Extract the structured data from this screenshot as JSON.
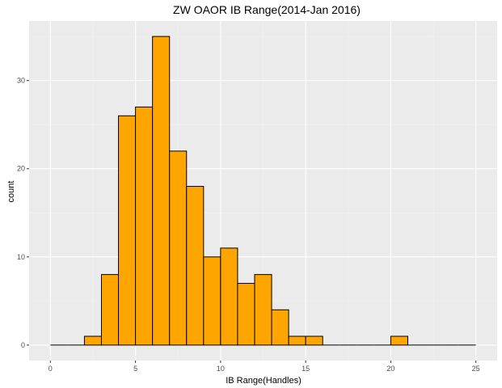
{
  "chart_data": {
    "type": "bar",
    "subtype": "histogram",
    "title": "ZW OAOR IB Range(2014-Jan 2016)",
    "xlabel": "IB Range(Handles)",
    "ylabel": "count",
    "bin_width": 1,
    "bins": [
      {
        "x0": 0,
        "x1": 1,
        "count": 0
      },
      {
        "x0": 1,
        "x1": 2,
        "count": 0
      },
      {
        "x0": 2,
        "x1": 3,
        "count": 1
      },
      {
        "x0": 3,
        "x1": 4,
        "count": 8
      },
      {
        "x0": 4,
        "x1": 5,
        "count": 26
      },
      {
        "x0": 5,
        "x1": 6,
        "count": 27
      },
      {
        "x0": 6,
        "x1": 7,
        "count": 35
      },
      {
        "x0": 7,
        "x1": 8,
        "count": 22
      },
      {
        "x0": 8,
        "x1": 9,
        "count": 18
      },
      {
        "x0": 9,
        "x1": 10,
        "count": 10
      },
      {
        "x0": 10,
        "x1": 11,
        "count": 11
      },
      {
        "x0": 11,
        "x1": 12,
        "count": 7
      },
      {
        "x0": 12,
        "x1": 13,
        "count": 8
      },
      {
        "x0": 13,
        "x1": 14,
        "count": 4
      },
      {
        "x0": 14,
        "x1": 15,
        "count": 1
      },
      {
        "x0": 15,
        "x1": 16,
        "count": 1
      },
      {
        "x0": 16,
        "x1": 17,
        "count": 0
      },
      {
        "x0": 17,
        "x1": 18,
        "count": 0
      },
      {
        "x0": 18,
        "x1": 19,
        "count": 0
      },
      {
        "x0": 19,
        "x1": 20,
        "count": 0
      },
      {
        "x0": 20,
        "x1": 21,
        "count": 1
      },
      {
        "x0": 21,
        "x1": 22,
        "count": 0
      },
      {
        "x0": 22,
        "x1": 23,
        "count": 0
      },
      {
        "x0": 23,
        "x1": 24,
        "count": 0
      },
      {
        "x0": 24,
        "x1": 25,
        "count": 0
      }
    ],
    "x_ticks": [
      0,
      5,
      10,
      15,
      20,
      25
    ],
    "y_ticks": [
      0,
      10,
      20,
      30
    ],
    "xlim": [
      -1.25,
      26.25
    ],
    "ylim": [
      -1.75,
      36.75
    ],
    "grid": true,
    "colors": {
      "bar_fill": "#FFA500",
      "bar_stroke": "#000000",
      "panel_bg": "#EBEBEB",
      "grid_major": "#FFFFFF",
      "grid_minor": "#F2F2F2"
    }
  }
}
